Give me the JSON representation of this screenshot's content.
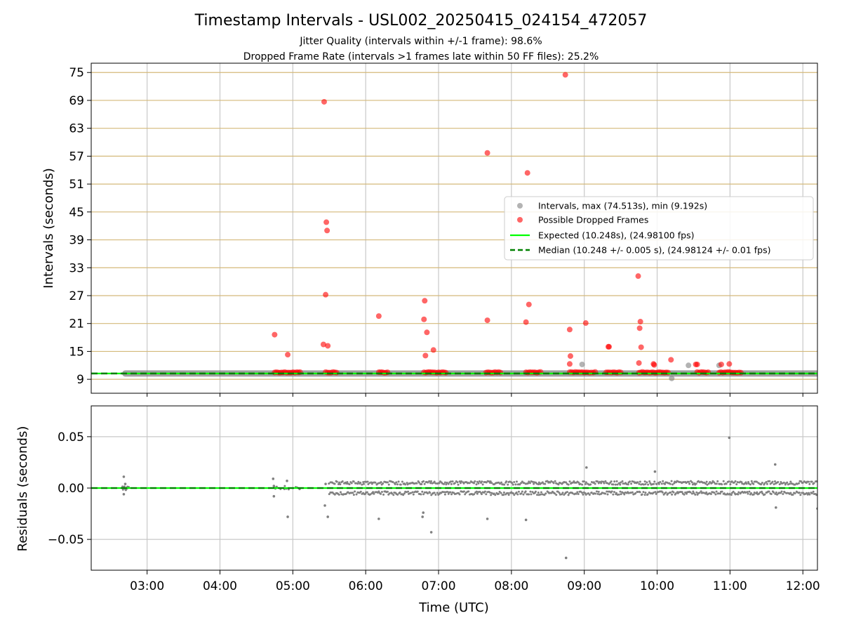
{
  "title": "Timestamp Intervals - USL002_20250415_024154_472057",
  "subtitle_lines": [
    "Jitter Quality (intervals within +/-1 frame): 98.6%",
    "Dropped Frame Rate (intervals >1 frames late within 50 FF files): 25.2%"
  ],
  "colors": {
    "intervals": "#808080",
    "dropped": "#ff0000",
    "expected": "#00ff00",
    "median": "#008000",
    "horizontal_grid": "#d4b97a",
    "vertical_grid": "#c8c8c8"
  },
  "chart_data": [
    {
      "type": "scatter",
      "ylabel": "Intervals (seconds)",
      "ylim": [
        6,
        77
      ],
      "yticks": [
        9,
        15,
        21,
        27,
        33,
        39,
        45,
        51,
        57,
        63,
        69,
        75
      ],
      "xlim_hours": [
        2.233,
        12.2
      ],
      "grid": true,
      "legend_position": "center-right",
      "legend": [
        "Intervals, max (74.513s), min (9.192s)",
        "Possible Dropped Frames",
        "Expected (10.248s), (24.98100 fps)",
        "Median (10.248 +/- 0.005 s), (24.98124 +/- 0.01 fps)"
      ],
      "series": [
        {
          "name": "Intervals, max (74.513s), min (9.192s)",
          "marker": "dot",
          "baseline_value": 10.248,
          "baseline_range_hours": [
            2.7,
            12.2
          ],
          "points": [
            [
              8.97,
              12.2
            ],
            [
              10.2,
              9.2
            ],
            [
              10.43,
              12.0
            ],
            [
              10.85,
              12.0
            ]
          ]
        },
        {
          "name": "Possible Dropped Frames",
          "marker": "dot",
          "clusters": [
            [
              4.75,
              5.1
            ],
            [
              5.45,
              5.6
            ],
            [
              6.18,
              6.3
            ],
            [
              6.8,
              7.1
            ],
            [
              7.65,
              7.85
            ],
            [
              8.2,
              8.4
            ],
            [
              8.8,
              9.0
            ],
            [
              9.02,
              9.15
            ],
            [
              9.3,
              9.5
            ],
            [
              9.75,
              10.15
            ],
            [
              10.55,
              10.7
            ],
            [
              10.85,
              11.15
            ]
          ],
          "cluster_value": 10.5,
          "points": [
            [
              4.75,
              18.6
            ],
            [
              4.93,
              14.3
            ],
            [
              5.42,
              16.5
            ],
            [
              5.43,
              68.7
            ],
            [
              5.45,
              27.2
            ],
            [
              5.46,
              42.8
            ],
            [
              5.47,
              41.0
            ],
            [
              5.48,
              16.2
            ],
            [
              6.18,
              22.6
            ],
            [
              6.8,
              21.9
            ],
            [
              6.81,
              25.9
            ],
            [
              6.82,
              14.1
            ],
            [
              6.84,
              19.1
            ],
            [
              6.93,
              15.3
            ],
            [
              7.67,
              57.7
            ],
            [
              7.67,
              21.7
            ],
            [
              8.2,
              21.3
            ],
            [
              8.22,
              53.4
            ],
            [
              8.24,
              25.1
            ],
            [
              8.74,
              74.5
            ],
            [
              8.8,
              19.7
            ],
            [
              8.81,
              14.0
            ],
            [
              8.8,
              12.3
            ],
            [
              9.02,
              21.1
            ],
            [
              9.33,
              16.0
            ],
            [
              9.34,
              16.0
            ],
            [
              9.74,
              31.2
            ],
            [
              9.75,
              12.5
            ],
            [
              9.76,
              20.0
            ],
            [
              9.77,
              21.4
            ],
            [
              9.78,
              15.9
            ],
            [
              9.95,
              12.3
            ],
            [
              9.96,
              12.1
            ],
            [
              10.19,
              13.2
            ],
            [
              10.53,
              12.2
            ],
            [
              10.55,
              12.2
            ],
            [
              10.88,
              12.2
            ],
            [
              10.99,
              12.3
            ]
          ]
        },
        {
          "name": "Expected (10.248s), (24.98100 fps)",
          "type": "hline",
          "value": 10.248
        },
        {
          "name": "Median (10.248 +/- 0.005 s), (24.98124 +/- 0.01 fps)",
          "type": "hline",
          "style": "dashed",
          "value": 10.248
        }
      ]
    },
    {
      "type": "scatter",
      "xlabel": "Time (UTC)",
      "ylabel": "Residuals (seconds)",
      "ylim": [
        -0.08,
        0.08
      ],
      "yticks": [
        -0.05,
        0.0,
        0.05
      ],
      "ytick_labels": [
        "−0.05",
        "0.00",
        "0.05"
      ],
      "xticks_hours": [
        3,
        4,
        5,
        6,
        7,
        8,
        9,
        10,
        11,
        12
      ],
      "xtick_labels": [
        "03:00",
        "04:00",
        "05:00",
        "06:00",
        "07:00",
        "08:00",
        "09:00",
        "10:00",
        "11:00",
        "12:00"
      ],
      "grid": true,
      "series": [
        {
          "name": "",
          "marker": "dot",
          "band_range_hours": [
            5.5,
            12.2
          ],
          "band_values": [
            0.005,
            -0.005
          ],
          "points": [
            [
              2.68,
              0.011
            ],
            [
              2.68,
              -0.006
            ],
            [
              2.7,
              0.004
            ],
            [
              4.73,
              0.009
            ],
            [
              4.74,
              0.002
            ],
            [
              4.74,
              -0.008
            ],
            [
              4.92,
              0.007
            ],
            [
              4.93,
              -0.028
            ],
            [
              5.44,
              -0.017
            ],
            [
              5.45,
              0.004
            ],
            [
              5.48,
              -0.028
            ],
            [
              6.18,
              -0.03
            ],
            [
              6.78,
              -0.028
            ],
            [
              6.79,
              -0.024
            ],
            [
              6.9,
              -0.043
            ],
            [
              7.67,
              -0.03
            ],
            [
              8.2,
              -0.031
            ],
            [
              8.75,
              -0.068
            ],
            [
              9.03,
              0.02
            ],
            [
              9.97,
              0.016
            ],
            [
              10.99,
              0.049
            ],
            [
              11.62,
              0.023
            ],
            [
              11.63,
              -0.019
            ],
            [
              12.2,
              -0.02
            ]
          ]
        },
        {
          "name": "",
          "type": "hline",
          "value": 0.0
        }
      ]
    }
  ]
}
